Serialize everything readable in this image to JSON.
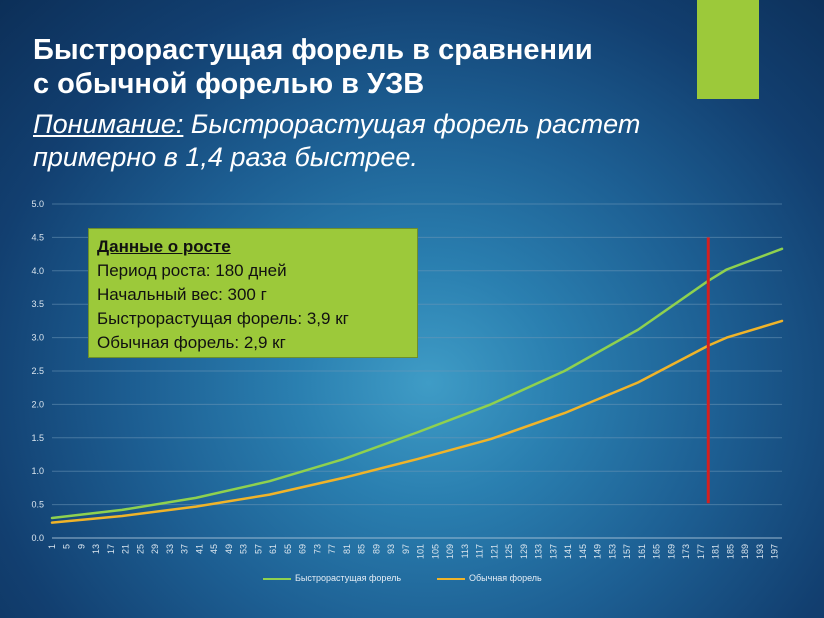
{
  "slide": {
    "title_line1": "Быстрорастущая форель в сравнении",
    "title_line2": "с обычной форелью в УЗВ",
    "subtitle_label": "Понимание:",
    "subtitle_text": " Быстрорастущая форель растет примерно в 1,4 раза быстрее."
  },
  "info_box": {
    "heading": "Данные о росте",
    "lines": [
      "Период роста: 180 дней",
      "Начальный вес: 300 г",
      "Быстрорастущая форель: 3,9 кг",
      "Обычная форель: 2,9 кг"
    ]
  },
  "colors": {
    "accent": "#9cc93a",
    "fast_series": "#8fd14f",
    "normal_series": "#f0b429",
    "marker_line": "#d42020",
    "info_box_bg": "#9cc93a"
  },
  "chart_data": {
    "type": "line",
    "title": "",
    "xlabel": "",
    "ylabel": "",
    "x": [
      1,
      5,
      9,
      13,
      17,
      21,
      25,
      29,
      33,
      37,
      41,
      45,
      49,
      53,
      57,
      61,
      65,
      69,
      73,
      77,
      81,
      85,
      89,
      93,
      97,
      101,
      105,
      109,
      113,
      117,
      121,
      125,
      129,
      133,
      137,
      141,
      145,
      149,
      153,
      157,
      161,
      165,
      169,
      173,
      177,
      181,
      185,
      189,
      193,
      197
    ],
    "xlim": [
      1,
      199
    ],
    "ylim": [
      0,
      5
    ],
    "yticks": [
      "0.0",
      "0.5",
      "1.0",
      "1.5",
      "2.0",
      "2.5",
      "3.0",
      "3.5",
      "4.0",
      "4.5",
      "5.0"
    ],
    "grid": true,
    "legend_position": "bottom",
    "marker_x": 179,
    "series": [
      {
        "name": "Быстрорастущая форель",
        "color": "#8fd14f",
        "x": [
          1,
          20,
          40,
          60,
          80,
          100,
          120,
          140,
          160,
          179,
          184,
          199
        ],
        "values": [
          0.3,
          0.42,
          0.6,
          0.85,
          1.18,
          1.58,
          2.0,
          2.5,
          3.12,
          3.85,
          4.02,
          4.33
        ]
      },
      {
        "name": "Обычная форель",
        "color": "#f0b429",
        "x": [
          1,
          20,
          40,
          60,
          80,
          100,
          120,
          140,
          160,
          179,
          184,
          199
        ],
        "values": [
          0.23,
          0.33,
          0.47,
          0.65,
          0.9,
          1.18,
          1.48,
          1.87,
          2.33,
          2.88,
          3.0,
          3.25
        ]
      }
    ]
  }
}
